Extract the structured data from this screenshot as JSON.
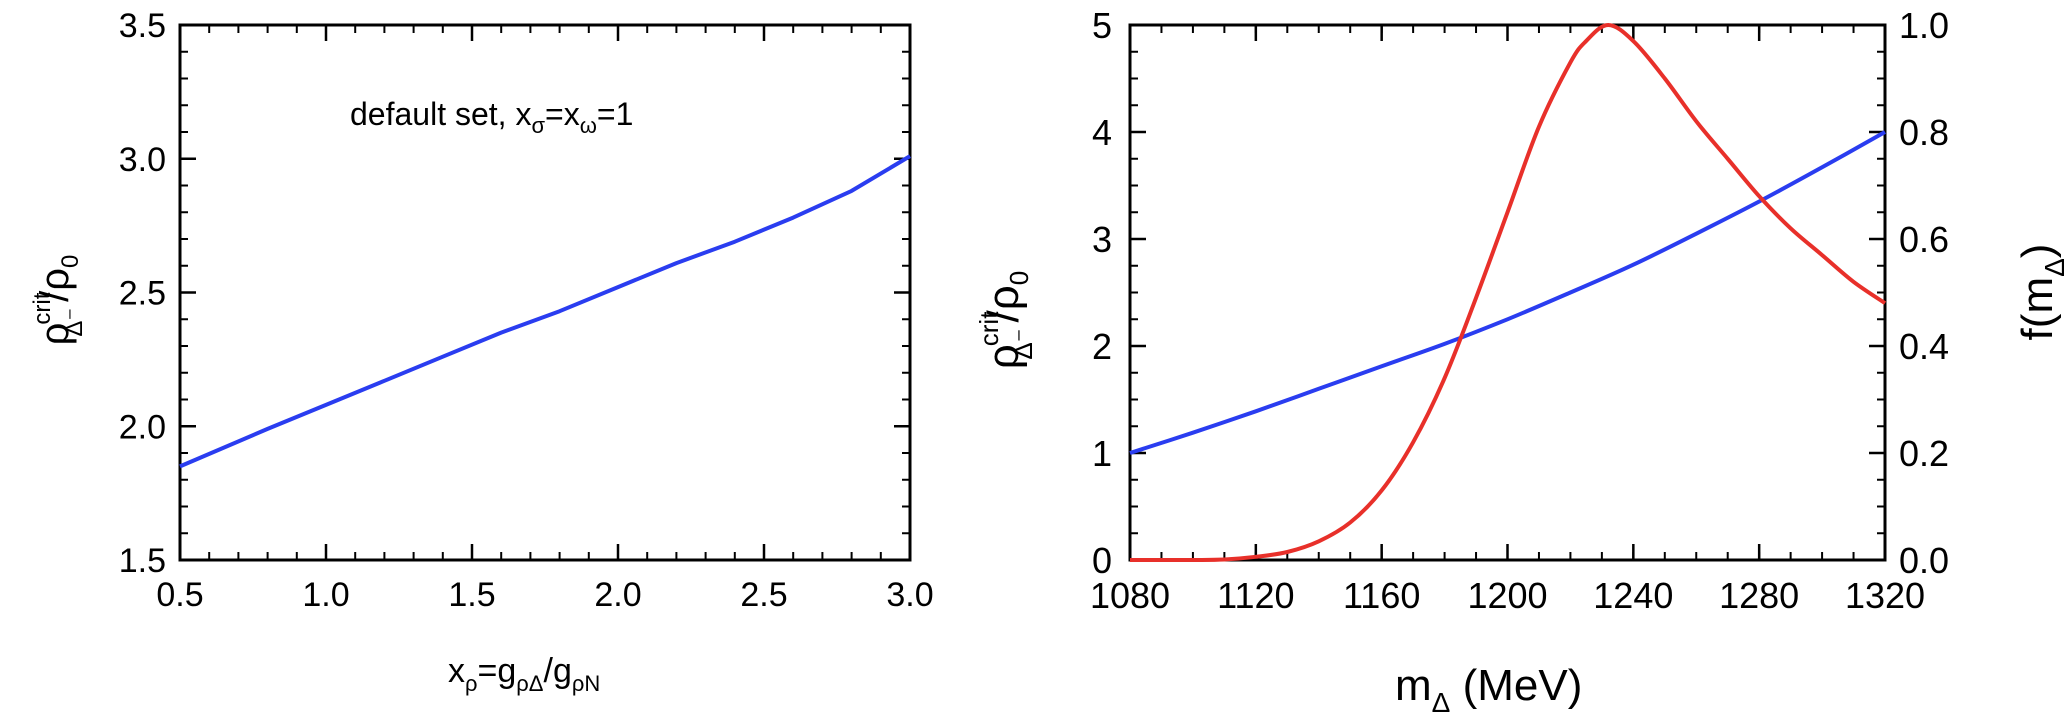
{
  "chart_data": [
    {
      "type": "line",
      "annotation": {
        "text": "default set, x",
        "sub1": "σ",
        "mid": "=x",
        "sub2": "ω",
        "tail": "=1"
      },
      "xlabel": {
        "base": "x",
        "sub1": "ρ",
        "mid": "=g",
        "sub2": "ρΔ",
        "slash": "/g",
        "sub3": "ρN"
      },
      "ylabel": {
        "base": "ρ",
        "sup": "crit",
        "sub": "Δ⁻",
        "tail": "/ρ",
        "sub2": "0"
      },
      "xlim": [
        0.5,
        3.0
      ],
      "ylim": [
        1.5,
        3.5
      ],
      "xticks": [
        "0.5",
        "1.0",
        "1.5",
        "2.0",
        "2.5",
        "3.0"
      ],
      "yticks": [
        "1.5",
        "2.0",
        "2.5",
        "3.0",
        "3.5"
      ],
      "series": [
        {
          "color": "#2a3df0",
          "x": [
            0.5,
            0.8,
            1.0,
            1.2,
            1.4,
            1.6,
            1.8,
            2.0,
            2.2,
            2.4,
            2.6,
            2.8,
            3.0
          ],
          "y": [
            1.85,
            1.99,
            2.08,
            2.17,
            2.26,
            2.35,
            2.43,
            2.52,
            2.61,
            2.69,
            2.78,
            2.88,
            3.01
          ]
        }
      ]
    },
    {
      "type": "line",
      "xlabel": {
        "base": "m",
        "sub": "Δ",
        "tail": " (MeV)"
      },
      "ylabel": {
        "base": "ρ",
        "sup": "crit",
        "sub": "Δ⁻",
        "tail": "/ρ",
        "sub2": "0"
      },
      "y2label": {
        "base": "f(m",
        "sub": "Δ",
        "tail": ")"
      },
      "xlim": [
        1080,
        1320
      ],
      "ylim": [
        0,
        5
      ],
      "y2lim": [
        0,
        1.0
      ],
      "xticks": [
        "1080",
        "1120",
        "1160",
        "1200",
        "1240",
        "1280",
        "1320"
      ],
      "yticks": [
        "0",
        "1",
        "2",
        "3",
        "4",
        "5"
      ],
      "y2ticks": [
        "0.0",
        "0.2",
        "0.4",
        "0.6",
        "0.8",
        "1.0"
      ],
      "series": [
        {
          "color": "#2a3df0",
          "axis": "left",
          "x": [
            1080,
            1100,
            1120,
            1140,
            1160,
            1180,
            1200,
            1220,
            1240,
            1260,
            1280,
            1300,
            1320
          ],
          "y": [
            1.0,
            1.19,
            1.39,
            1.6,
            1.81,
            2.02,
            2.25,
            2.5,
            2.76,
            3.05,
            3.35,
            3.67,
            4.0
          ]
        },
        {
          "color": "#e8302a",
          "axis": "right",
          "x": [
            1080,
            1100,
            1110,
            1120,
            1130,
            1140,
            1150,
            1160,
            1170,
            1180,
            1190,
            1200,
            1210,
            1220,
            1225,
            1232,
            1240,
            1250,
            1260,
            1270,
            1280,
            1290,
            1300,
            1310,
            1320
          ],
          "y": [
            0.0,
            0.0,
            0.001,
            0.006,
            0.015,
            0.035,
            0.07,
            0.13,
            0.22,
            0.34,
            0.49,
            0.65,
            0.81,
            0.93,
            0.97,
            1.0,
            0.97,
            0.9,
            0.82,
            0.75,
            0.68,
            0.62,
            0.57,
            0.52,
            0.48
          ]
        }
      ]
    }
  ]
}
